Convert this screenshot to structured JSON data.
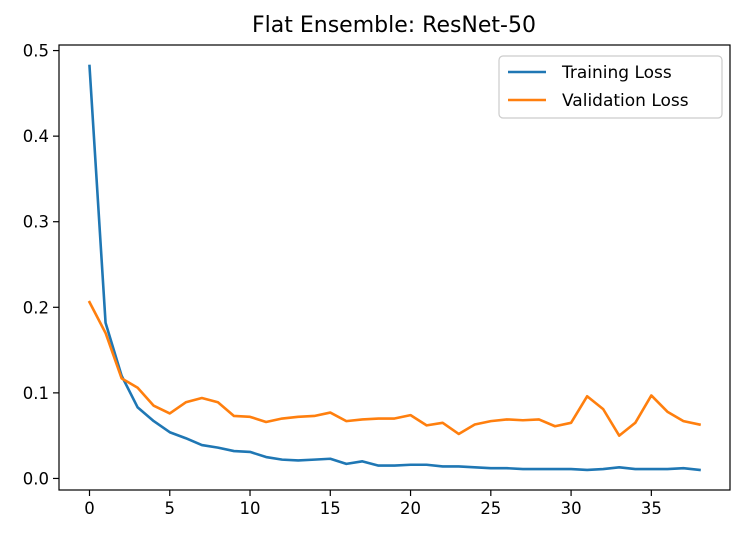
{
  "chart_data": {
    "type": "line",
    "title": "Flat Ensemble: ResNet-50",
    "xlabel": "",
    "ylabel": "",
    "xlim": [
      -1.9,
      39.9
    ],
    "ylim": [
      -0.0135,
      0.5065
    ],
    "xticks": [
      0,
      5,
      10,
      15,
      20,
      25,
      30,
      35
    ],
    "xtick_labels": [
      "0",
      "5",
      "10",
      "15",
      "20",
      "25",
      "30",
      "35"
    ],
    "yticks": [
      0.0,
      0.1,
      0.2,
      0.3,
      0.4,
      0.5
    ],
    "ytick_labels": [
      "0.0",
      "0.1",
      "0.2",
      "0.3",
      "0.4",
      "0.5"
    ],
    "grid": false,
    "legend": "top-right",
    "x": [
      0,
      1,
      2,
      3,
      4,
      5,
      6,
      7,
      8,
      9,
      10,
      11,
      12,
      13,
      14,
      15,
      16,
      17,
      18,
      19,
      20,
      21,
      22,
      23,
      24,
      25,
      26,
      27,
      28,
      29,
      30,
      31,
      32,
      33,
      34,
      35,
      36,
      37,
      38
    ],
    "series": [
      {
        "name": "Training Loss",
        "color": "#1f77b4",
        "values": [
          0.482,
          0.182,
          0.12,
          0.083,
          0.067,
          0.054,
          0.047,
          0.039,
          0.036,
          0.032,
          0.031,
          0.025,
          0.022,
          0.021,
          0.022,
          0.023,
          0.017,
          0.02,
          0.015,
          0.015,
          0.016,
          0.016,
          0.014,
          0.014,
          0.013,
          0.012,
          0.012,
          0.011,
          0.011,
          0.011,
          0.011,
          0.01,
          0.011,
          0.013,
          0.011,
          0.011,
          0.011,
          0.012,
          0.01
        ]
      },
      {
        "name": "Validation Loss",
        "color": "#ff7f0e",
        "values": [
          0.206,
          0.17,
          0.117,
          0.106,
          0.085,
          0.076,
          0.089,
          0.094,
          0.089,
          0.073,
          0.072,
          0.066,
          0.07,
          0.072,
          0.073,
          0.077,
          0.067,
          0.069,
          0.07,
          0.07,
          0.074,
          0.062,
          0.065,
          0.052,
          0.063,
          0.067,
          0.069,
          0.068,
          0.069,
          0.061,
          0.065,
          0.096,
          0.081,
          0.05,
          0.065,
          0.097,
          0.078,
          0.067,
          0.063
        ]
      }
    ]
  }
}
